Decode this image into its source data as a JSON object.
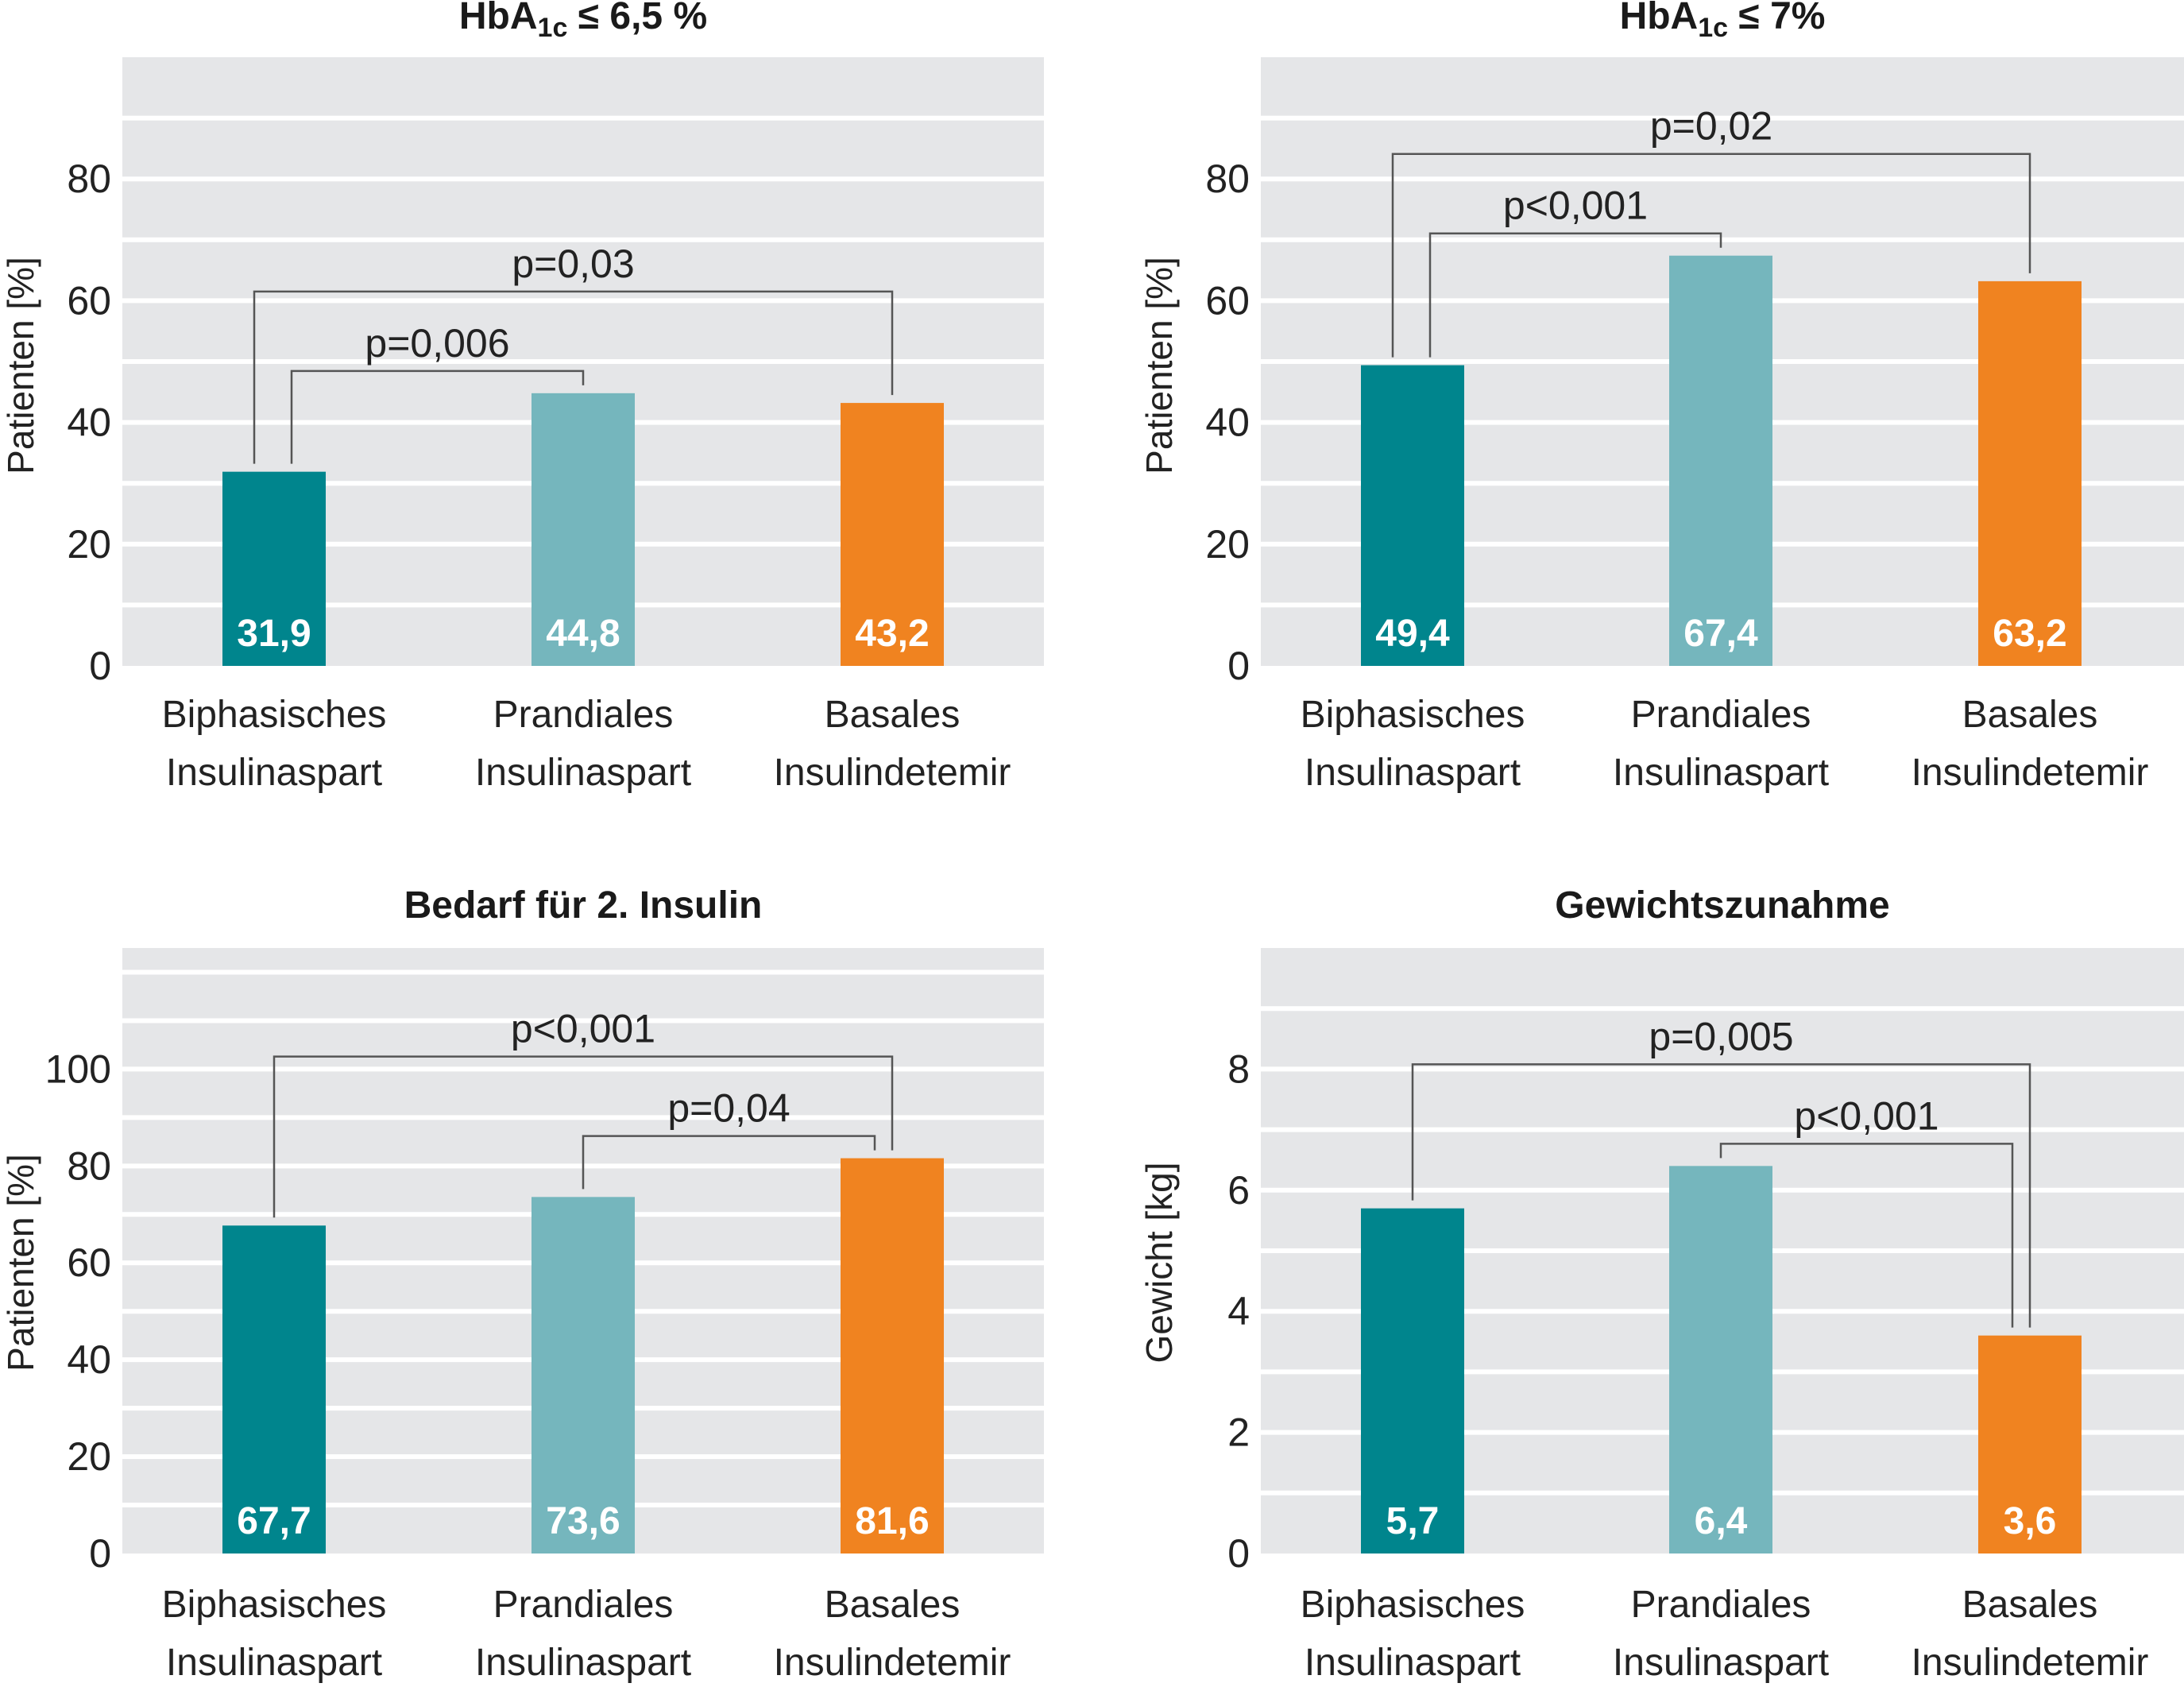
{
  "chart_data": [
    {
      "type": "bar",
      "title": "HbA1c ≤ 6,5 %",
      "title_parts": {
        "main": "HbA",
        "sub": "1c",
        "rest": " ≤ 6,5 %"
      },
      "ylabel": "Patienten [%]",
      "ylim": [
        0,
        100
      ],
      "yticks": [
        "0",
        "20",
        "40",
        "60",
        "80"
      ],
      "grid": "horizontal",
      "categories": [
        [
          "Biphasisches",
          "Insulinaspart"
        ],
        [
          "Prandiales",
          "Insulinaspart"
        ],
        [
          "Basales",
          "Insulindetemir"
        ]
      ],
      "values": [
        31.9,
        44.8,
        43.2
      ],
      "value_labels": [
        "31,9",
        "44,8",
        "43,2"
      ],
      "significance": [
        {
          "from": 0,
          "to": 1,
          "label": "p=0,006",
          "level": 1
        },
        {
          "from": 0,
          "to": 2,
          "label": "p=0,03",
          "level": 2
        }
      ]
    },
    {
      "type": "bar",
      "title": "HbA1c ≤ 7%",
      "title_parts": {
        "main": "HbA",
        "sub": "1c",
        "rest": " ≤ 7%"
      },
      "ylabel": "Patienten [%]",
      "ylim": [
        0,
        100
      ],
      "yticks": [
        "0",
        "20",
        "40",
        "60",
        "80"
      ],
      "grid": "horizontal",
      "categories": [
        [
          "Biphasisches",
          "Insulinaspart"
        ],
        [
          "Prandiales",
          "Insulinaspart"
        ],
        [
          "Basales",
          "Insulindetemir"
        ]
      ],
      "values": [
        49.4,
        67.4,
        63.2
      ],
      "value_labels": [
        "49,4",
        "67,4",
        "63,2"
      ],
      "significance": [
        {
          "from": 0,
          "to": 1,
          "label": "p<0,001",
          "level": 1
        },
        {
          "from": 0,
          "to": 2,
          "label": "p=0,02",
          "level": 2
        }
      ]
    },
    {
      "type": "bar",
      "title": "Bedarf für 2. Insulin",
      "ylabel": "Patienten [%]",
      "ylim": [
        0,
        125
      ],
      "yticks": [
        "0",
        "20",
        "40",
        "60",
        "80",
        "100"
      ],
      "grid": "horizontal",
      "categories": [
        [
          "Biphasisches",
          "Insulinaspart"
        ],
        [
          "Prandiales",
          "Insulinaspart"
        ],
        [
          "Basales",
          "Insulindetemir"
        ]
      ],
      "values": [
        67.7,
        73.6,
        81.6
      ],
      "value_labels": [
        "67,7",
        "73,6",
        "81,6"
      ],
      "significance": [
        {
          "from": 1,
          "to": 2,
          "label": "p=0,04",
          "level": 1
        },
        {
          "from": 0,
          "to": 2,
          "label": "p<0,001",
          "level": 2
        }
      ]
    },
    {
      "type": "bar",
      "title": "Gewichtszunahme",
      "ylabel": "Gewicht [kg]",
      "ylim": [
        0,
        10
      ],
      "yticks": [
        "0",
        "2",
        "4",
        "6",
        "8"
      ],
      "grid": "horizontal",
      "categories": [
        [
          "Biphasisches",
          "Insulinaspart"
        ],
        [
          "Prandiales",
          "Insulinaspart"
        ],
        [
          "Basales",
          "Insulindetemir"
        ]
      ],
      "values": [
        5.7,
        6.4,
        3.6
      ],
      "value_labels": [
        "5,7",
        "6,4",
        "3,6"
      ],
      "significance": [
        {
          "from": 1,
          "to": 2,
          "label": "p<0,001",
          "level": 1
        },
        {
          "from": 0,
          "to": 2,
          "label": "p=0,005",
          "level": 2
        }
      ]
    }
  ],
  "colors": {
    "series": [
      "#00858d",
      "#75b6bd",
      "#f08320"
    ],
    "background": "#e5e6e8",
    "gridline": "#ffffff"
  }
}
